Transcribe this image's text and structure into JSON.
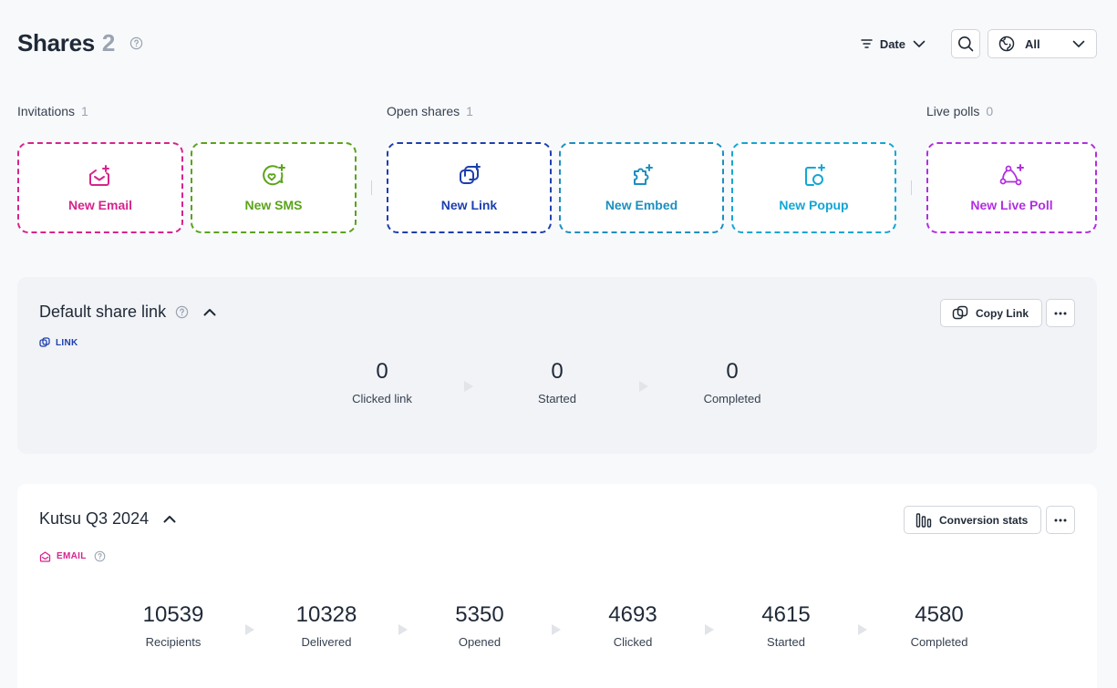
{
  "header": {
    "title": "Shares",
    "count": "2"
  },
  "toolbar": {
    "date_label": "Date",
    "all_label": "All"
  },
  "groups": {
    "invitations": {
      "label": "Invitations",
      "count": "1"
    },
    "open_shares": {
      "label": "Open shares",
      "count": "1"
    },
    "live_polls": {
      "label": "Live polls",
      "count": "0"
    }
  },
  "tiles": {
    "email": {
      "label": "New Email",
      "color": "#d6248c"
    },
    "sms": {
      "label": "New SMS",
      "color": "#5aa31a"
    },
    "link": {
      "label": "New Link",
      "color": "#1e3fae"
    },
    "embed": {
      "label": "New Embed",
      "color": "#1d8fbf"
    },
    "popup": {
      "label": "New Popup",
      "color": "#13a6d4"
    },
    "live_poll": {
      "label": "New Live Poll",
      "color": "#b12ee0"
    }
  },
  "default_share": {
    "title": "Default share link",
    "type": "LINK",
    "copy_label": "Copy Link",
    "stats": [
      {
        "value": "0",
        "label": "Clicked link"
      },
      {
        "value": "0",
        "label": "Started"
      },
      {
        "value": "0",
        "label": "Completed"
      }
    ]
  },
  "campaign": {
    "title": "Kutsu Q3 2024",
    "type": "EMAIL",
    "conversion_label": "Conversion stats",
    "stats": [
      {
        "value": "10539",
        "label": "Recipients"
      },
      {
        "value": "10328",
        "label": "Delivered"
      },
      {
        "value": "5350",
        "label": "Opened"
      },
      {
        "value": "4693",
        "label": "Clicked"
      },
      {
        "value": "4615",
        "label": "Started"
      },
      {
        "value": "4580",
        "label": "Completed"
      }
    ]
  }
}
